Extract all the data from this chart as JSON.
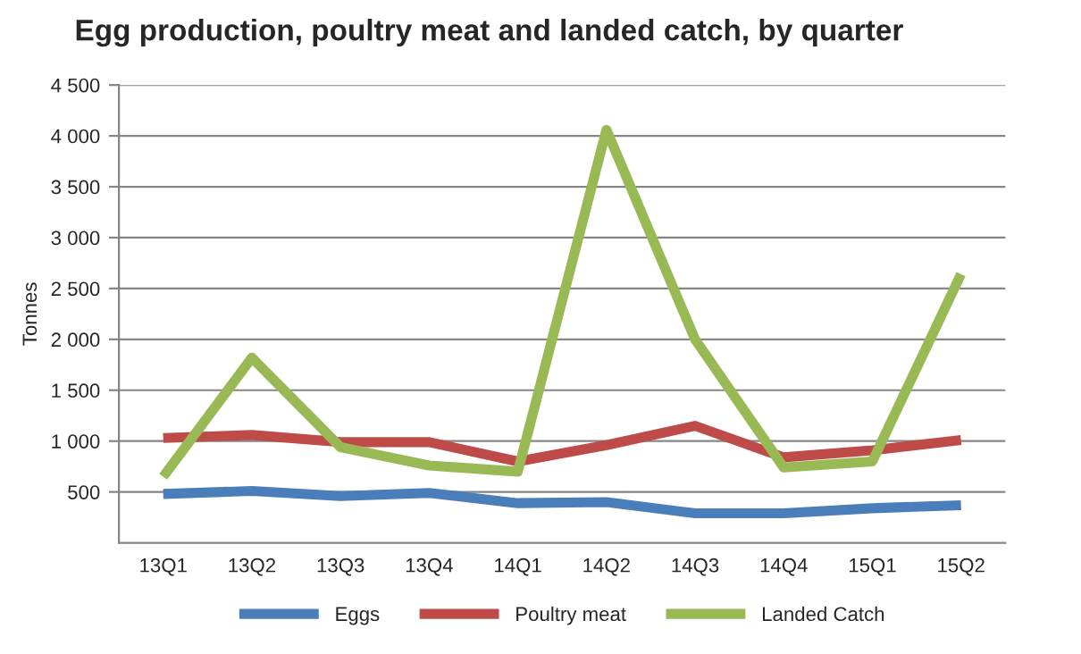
{
  "chart_data": {
    "type": "line",
    "title": "Egg production, poultry meat and landed catch, by quarter",
    "ylabel": "Tonnes",
    "categories": [
      "13Q1",
      "13Q2",
      "13Q3",
      "13Q4",
      "14Q1",
      "14Q2",
      "14Q3",
      "14Q4",
      "15Q1",
      "15Q2"
    ],
    "series": [
      {
        "name": "Eggs",
        "color": "#4a7ebb",
        "values": [
          480,
          510,
          460,
          490,
          390,
          400,
          290,
          290,
          340,
          370
        ]
      },
      {
        "name": "Poultry meat",
        "color": "#be4b48",
        "values": [
          1030,
          1060,
          990,
          990,
          800,
          960,
          1150,
          840,
          910,
          1010
        ]
      },
      {
        "name": "Landed Catch",
        "color": "#98b954",
        "values": [
          650,
          1820,
          940,
          760,
          700,
          4060,
          2000,
          740,
          800,
          2640
        ]
      }
    ],
    "ylim": [
      0,
      4500
    ],
    "yticks": [
      {
        "value": 500,
        "label": "500"
      },
      {
        "value": 1000,
        "label": "1 000"
      },
      {
        "value": 1500,
        "label": "1 500"
      },
      {
        "value": 2000,
        "label": "2 000"
      },
      {
        "value": 2500,
        "label": "2 500"
      },
      {
        "value": 3000,
        "label": "3 000"
      },
      {
        "value": 3500,
        "label": "3 500"
      },
      {
        "value": 4000,
        "label": "4 000"
      },
      {
        "value": 4500,
        "label": "4 500"
      }
    ],
    "grid": "y",
    "legend": "bottom",
    "marker": "none",
    "line_style": "solid"
  }
}
